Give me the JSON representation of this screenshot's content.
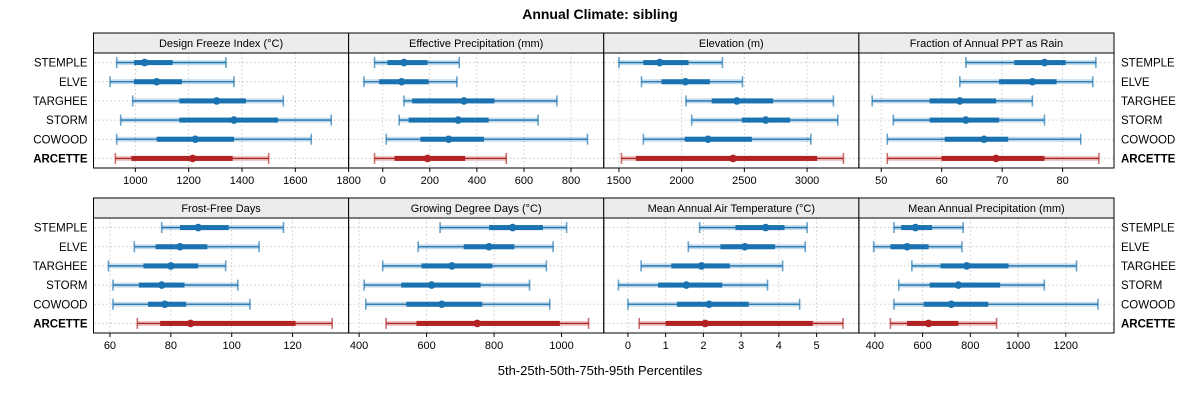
{
  "title": "Annual Climate: sibling",
  "xlabel": "5th-25th-50th-75th-95th Percentiles",
  "colors": {
    "site_blue": "#1a72b0",
    "target_red": "#b22222",
    "grid": "#c9c9c9",
    "strip_bg": "#ececec",
    "panel_border": "#000000",
    "text": "#000000"
  },
  "chart_data": {
    "type": "dotplot",
    "subtype": "percentile-intervals",
    "percentiles": [
      5,
      25,
      50,
      75,
      95
    ],
    "legend_note": "rows are sites; ARCETTE is highlighted target site in red bold",
    "sites": [
      {
        "name": "STEMPLE",
        "target": false
      },
      {
        "name": "ELVE",
        "target": false
      },
      {
        "name": "TARGHEE",
        "target": false
      },
      {
        "name": "STORM",
        "target": false
      },
      {
        "name": "COWOOD",
        "target": false
      },
      {
        "name": "ARCETTE",
        "target": true
      }
    ],
    "panels": [
      {
        "title": "Design Freeze Index (°C)",
        "row": 0,
        "col": 0,
        "xlim": [
          843,
          1800
        ],
        "ticks": [
          1000,
          1200,
          1400,
          1600,
          1800
        ],
        "values": {
          "STEMPLE": [
            930,
            995,
            1035,
            1140,
            1340
          ],
          "ELVE": [
            905,
            995,
            1080,
            1175,
            1370
          ],
          "TARGHEE": [
            990,
            1165,
            1305,
            1415,
            1555
          ],
          "STORM": [
            945,
            1165,
            1370,
            1535,
            1735
          ],
          "COWOOD": [
            930,
            1080,
            1225,
            1370,
            1660
          ],
          "ARCETTE": [
            925,
            985,
            1215,
            1365,
            1500
          ]
        }
      },
      {
        "title": "Effective Precipitation (mm)",
        "row": 0,
        "col": 1,
        "xlim": [
          -145,
          939
        ],
        "ticks": [
          0,
          200,
          400,
          600,
          800
        ],
        "values": {
          "STEMPLE": [
            -35,
            20,
            90,
            190,
            325
          ],
          "ELVE": [
            -80,
            -15,
            80,
            195,
            315
          ],
          "TARGHEE": [
            90,
            125,
            345,
            475,
            740
          ],
          "STORM": [
            70,
            110,
            320,
            450,
            660
          ],
          "COWOOD": [
            15,
            160,
            280,
            430,
            870
          ],
          "ARCETTE": [
            -35,
            50,
            190,
            350,
            525
          ]
        }
      },
      {
        "title": "Elevation (m)",
        "row": 0,
        "col": 2,
        "xlim": [
          1379,
          3413
        ],
        "ticks": [
          1500,
          2000,
          2500,
          3000
        ],
        "values": {
          "STEMPLE": [
            1500,
            1695,
            1825,
            2055,
            2325
          ],
          "ELVE": [
            1680,
            1840,
            2030,
            2225,
            2485
          ],
          "TARGHEE": [
            2035,
            2240,
            2440,
            2730,
            3210
          ],
          "STORM": [
            2080,
            2480,
            2670,
            2865,
            3245
          ],
          "COWOOD": [
            1695,
            2025,
            2210,
            2560,
            3030
          ],
          "ARCETTE": [
            1520,
            1635,
            2410,
            3080,
            3290
          ]
        }
      },
      {
        "title": "Fraction of Annual PPT as Rain",
        "row": 0,
        "col": 3,
        "xlim": [
          46.3,
          88.5
        ],
        "ticks": [
          50,
          60,
          70,
          80
        ],
        "values": {
          "STEMPLE": [
            64,
            72,
            77,
            80.5,
            85.5
          ],
          "ELVE": [
            63,
            69.5,
            75,
            79,
            85
          ],
          "TARGHEE": [
            48.5,
            58,
            63,
            69,
            75
          ],
          "STORM": [
            52,
            58,
            64,
            69.5,
            77
          ],
          "COWOOD": [
            51,
            60.5,
            67,
            71,
            83
          ],
          "ARCETTE": [
            51,
            60,
            69,
            77,
            86
          ]
        }
      },
      {
        "title": "Frost-Free Days",
        "row": 1,
        "col": 0,
        "xlim": [
          54.6,
          138.4
        ],
        "ticks": [
          60,
          80,
          100,
          120
        ],
        "values": {
          "STEMPLE": [
            77,
            83,
            89,
            99,
            117
          ],
          "ELVE": [
            68,
            75,
            83,
            92,
            109
          ],
          "TARGHEE": [
            59.5,
            71,
            80,
            89,
            98
          ],
          "STORM": [
            61,
            69.5,
            77,
            84.5,
            102
          ],
          "COWOOD": [
            61,
            72.5,
            78,
            85,
            106
          ],
          "ARCETTE": [
            69,
            76.5,
            86.5,
            121,
            133
          ]
        }
      },
      {
        "title": "Growing Degree Days (°C)",
        "row": 1,
        "col": 1,
        "xlim": [
          369,
          1125
        ],
        "ticks": [
          400,
          600,
          800,
          1000
        ],
        "values": {
          "STEMPLE": [
            640,
            785,
            855,
            945,
            1015
          ],
          "ELVE": [
            575,
            710,
            785,
            860,
            975
          ],
          "TARGHEE": [
            470,
            585,
            675,
            795,
            955
          ],
          "STORM": [
            415,
            525,
            615,
            760,
            905
          ],
          "COWOOD": [
            420,
            540,
            645,
            765,
            965
          ],
          "ARCETTE": [
            480,
            570,
            750,
            995,
            1080
          ]
        }
      },
      {
        "title": "Mean Annual Air Temperature (°C)",
        "row": 1,
        "col": 2,
        "xlim": [
          -0.64,
          6.12
        ],
        "ticks": [
          0,
          1,
          2,
          3,
          4,
          5
        ],
        "values": {
          "STEMPLE": [
            1.9,
            2.85,
            3.65,
            4.15,
            4.75
          ],
          "ELVE": [
            1.6,
            2.45,
            3.1,
            3.9,
            4.7
          ],
          "TARGHEE": [
            0.35,
            1.15,
            1.95,
            2.7,
            4.1
          ],
          "STORM": [
            -0.25,
            0.8,
            1.55,
            2.5,
            3.7
          ],
          "COWOOD": [
            0.0,
            1.3,
            2.15,
            3.2,
            4.55
          ],
          "ARCETTE": [
            0.3,
            1.0,
            2.05,
            4.9,
            5.7
          ]
        }
      },
      {
        "title": "Mean Annual Precipitation (mm)",
        "row": 1,
        "col": 3,
        "xlim": [
          333,
          1402
        ],
        "ticks": [
          400,
          600,
          800,
          1000,
          1200
        ],
        "values": {
          "STEMPLE": [
            480,
            510,
            570,
            640,
            770
          ],
          "ELVE": [
            395,
            465,
            535,
            625,
            765
          ],
          "TARGHEE": [
            555,
            675,
            785,
            960,
            1245
          ],
          "STORM": [
            500,
            630,
            750,
            925,
            1110
          ],
          "COWOOD": [
            480,
            605,
            720,
            875,
            1335
          ],
          "ARCETTE": [
            465,
            535,
            625,
            750,
            910
          ]
        }
      }
    ],
    "layout": {
      "grid": "dotted vertical lines at labeled ticks; dotted horizontal guide per site row",
      "panel_grid_rows": 2,
      "panel_grid_cols": 4,
      "site_labels": "left and right of each panel row, ARCETTE bold"
    }
  }
}
